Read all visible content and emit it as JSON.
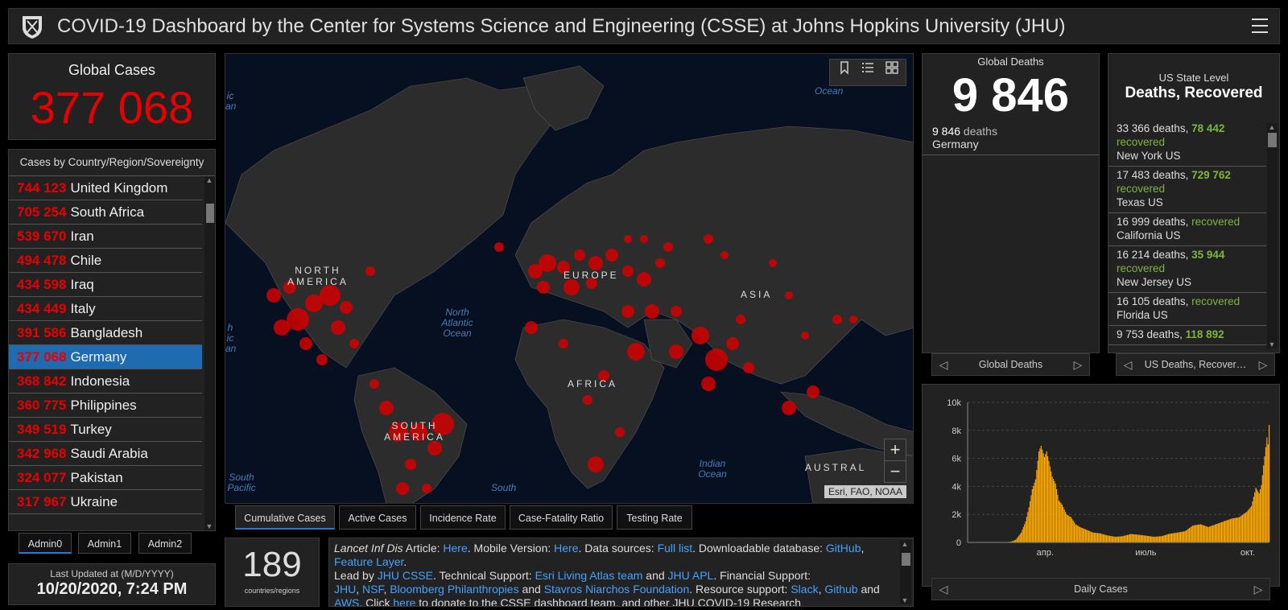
{
  "header": {
    "title": "COVID-19 Dashboard by the Center for Systems Science and Engineering (CSSE) at Johns Hopkins University (JHU)"
  },
  "global_cases": {
    "title": "Global Cases",
    "value": "377 068"
  },
  "country_list": {
    "header": "Cases by Country/Region/Sovereignty",
    "rows": [
      {
        "num": "744 123",
        "name": "United Kingdom"
      },
      {
        "num": "705 254",
        "name": "South Africa"
      },
      {
        "num": "539 670",
        "name": "Iran"
      },
      {
        "num": "494 478",
        "name": "Chile"
      },
      {
        "num": "434 598",
        "name": "Iraq"
      },
      {
        "num": "434 449",
        "name": "Italy"
      },
      {
        "num": "391 586",
        "name": "Bangladesh"
      },
      {
        "num": "377 068",
        "name": "Germany",
        "selected": true
      },
      {
        "num": "368 842",
        "name": "Indonesia"
      },
      {
        "num": "360 775",
        "name": "Philippines"
      },
      {
        "num": "349 519",
        "name": "Turkey"
      },
      {
        "num": "342 968",
        "name": "Saudi Arabia"
      },
      {
        "num": "324 077",
        "name": "Pakistan"
      },
      {
        "num": "317 967",
        "name": "Ukraine"
      }
    ]
  },
  "admin_tabs": [
    "Admin0",
    "Admin1",
    "Admin2"
  ],
  "last_updated": {
    "label": "Last Updated at (M/D/YYYY)",
    "value": "10/20/2020, 7:24 PM"
  },
  "map": {
    "attribution": "Esri, FAO, NOAA",
    "zoom_in": "+",
    "zoom_out": "−",
    "continent_labels": {
      "north_america": "NORTH AMERICA",
      "europe": "EUROPE",
      "asia": "ASIA",
      "africa": "AFRICA",
      "south_america": "SOUTH AMERICA",
      "australia": "AUSTRAL"
    },
    "ocean_labels": {
      "north_atlantic": "North Atlantic Ocean",
      "indian": "Indian Ocean",
      "south_pacific": "South Pacific",
      "south": "South",
      "ocean_top": "Ocean",
      "left_top": "ic an",
      "left_mid": "h ic an"
    },
    "tabs": [
      "Cumulative Cases",
      "Active Cases",
      "Incidence Rate",
      "Case-Fatality Ratio",
      "Testing Rate"
    ]
  },
  "countries_count": {
    "value": "189",
    "label": "countries/regions"
  },
  "info": {
    "journal": "Lancet Inf Dis",
    "t1": " Article: ",
    "l_here1": "Here",
    "t2": ". Mobile Version: ",
    "l_here2": "Here",
    "t3": ". Data sources: ",
    "l_full": "Full list",
    "t4": ". Downloadable database: ",
    "l_github": "GitHub",
    "t5": ", ",
    "l_feature": "Feature Layer",
    "t6": ".",
    "t7": "Lead by ",
    "l_jhucsse": "JHU CSSE",
    "t8": ". Technical Support: ",
    "l_esri": "Esri Living Atlas team",
    "t9": " and ",
    "l_jhuapl": "JHU APL",
    "t10": ". Financial Support:",
    "l_jhu": "JHU",
    "t11": ", ",
    "l_nsf": "NSF",
    "t12": ", ",
    "l_bloomberg": "Bloomberg Philanthropies",
    "t13": " and ",
    "l_stavros": "Stavros Niarchos Foundation",
    "t14": ". Resource support: ",
    "l_slack": "Slack",
    "t15": ", ",
    "l_github2": "Github",
    "t16": " and",
    "l_aws": "AWS",
    "t17": ". Click ",
    "l_here3": "here",
    "t18": " to donate to the CSSE dashboard team, and other JHU COVID-19 Research"
  },
  "global_deaths": {
    "title": "Global Deaths",
    "value": "9 846",
    "item_value": "9 846",
    "item_unit": " deaths",
    "item_country": "Germany",
    "nav_label": "Global Deaths"
  },
  "us_state": {
    "title1": "US State Level",
    "title2": "Deaths, Recovered",
    "rows": [
      {
        "deaths": "33 366 deaths, ",
        "recovered_num": "78 442",
        "recovered": "recovered",
        "loc": "New York US"
      },
      {
        "deaths": "17 483 deaths, ",
        "recovered_num": "729 762",
        "recovered": "recovered",
        "loc": "Texas US"
      },
      {
        "deaths": "16 999 deaths, ",
        "recovered_num": "",
        "recovered": "recovered",
        "loc": "California US"
      },
      {
        "deaths": "16 214 deaths, ",
        "recovered_num": "35 944",
        "recovered": "recovered",
        "loc": "New Jersey US"
      },
      {
        "deaths": "16 105 deaths, ",
        "recovered_num": "",
        "recovered": "recovered",
        "loc": "Florida US"
      },
      {
        "deaths": "9 753 deaths, ",
        "recovered_num": "118 892",
        "recovered": "",
        "loc": ""
      }
    ],
    "nav_label": "US Deaths, Recover…"
  },
  "daily_nav_label": "Daily Cases",
  "colors": {
    "case_red": "#e60000",
    "accent_blue": "#2b7ac9",
    "recovered_green": "#7cb540",
    "bar_orange": "#ffaa00"
  },
  "chart_data": {
    "type": "bar",
    "title": "Daily Cases",
    "x_tick_labels": [
      "апр.",
      "июль",
      "окт."
    ],
    "y_tick_labels": [
      "0",
      "2k",
      "4k",
      "6k",
      "8k",
      "10k"
    ],
    "ylim": [
      0,
      10000
    ],
    "grid": true,
    "x": [
      "2020-01-22",
      "2020-01-29",
      "2020-02-05",
      "2020-02-12",
      "2020-02-19",
      "2020-02-26",
      "2020-03-01",
      "2020-03-05",
      "2020-03-10",
      "2020-03-14",
      "2020-03-17",
      "2020-03-20",
      "2020-03-23",
      "2020-03-26",
      "2020-03-28",
      "2020-03-31",
      "2020-04-02",
      "2020-04-04",
      "2020-04-07",
      "2020-04-10",
      "2020-04-13",
      "2020-04-16",
      "2020-04-20",
      "2020-04-24",
      "2020-04-28",
      "2020-05-02",
      "2020-05-08",
      "2020-05-14",
      "2020-05-20",
      "2020-05-27",
      "2020-06-03",
      "2020-06-10",
      "2020-06-17",
      "2020-06-24",
      "2020-07-01",
      "2020-07-08",
      "2020-07-15",
      "2020-07-22",
      "2020-07-29",
      "2020-08-05",
      "2020-08-12",
      "2020-08-19",
      "2020-08-26",
      "2020-09-02",
      "2020-09-09",
      "2020-09-16",
      "2020-09-23",
      "2020-09-30",
      "2020-10-04",
      "2020-10-08",
      "2020-10-11",
      "2020-10-13",
      "2020-10-15",
      "2020-10-17",
      "2020-10-18",
      "2020-10-19",
      "2020-10-20"
    ],
    "values": [
      0,
      0,
      5,
      2,
      0,
      20,
      60,
      180,
      700,
      1500,
      2500,
      3800,
      4500,
      6500,
      6900,
      6100,
      6500,
      5800,
      4700,
      4200,
      3000,
      2700,
      2000,
      1800,
      1300,
      1100,
      900,
      700,
      650,
      500,
      400,
      450,
      600,
      550,
      480,
      400,
      450,
      620,
      700,
      800,
      1200,
      1300,
      1100,
      1300,
      1500,
      1700,
      1800,
      2200,
      2600,
      3900,
      3500,
      4100,
      5500,
      6800,
      7500,
      7000,
      8400
    ]
  }
}
